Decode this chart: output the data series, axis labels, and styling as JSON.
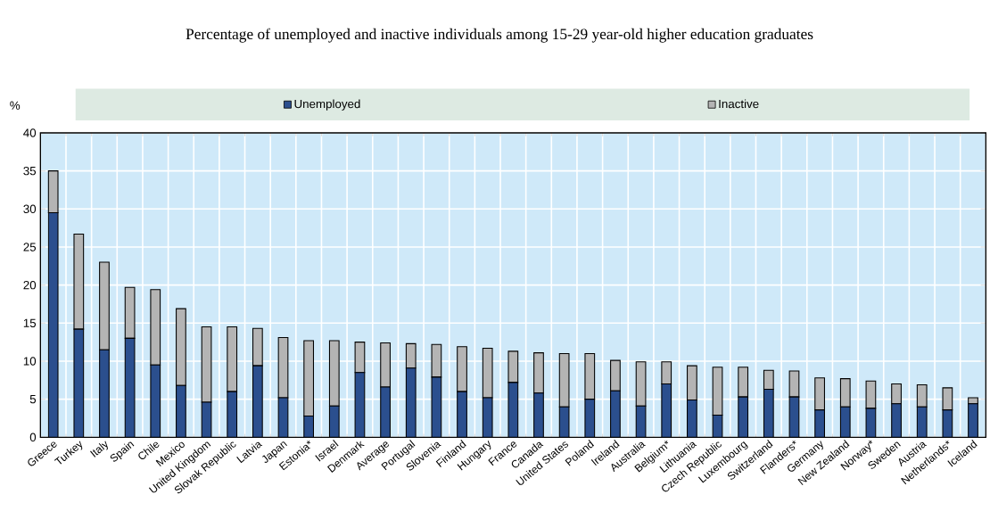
{
  "chart_data": {
    "type": "bar",
    "stacked": true,
    "title": "Percentage of unemployed and inactive individuals among 15-29 year-old higher education graduates",
    "ylabel": "%",
    "categories": [
      "Greece",
      "Turkey",
      "Italy",
      "Spain",
      "Chile",
      "Mexico",
      "United Kingdom",
      "Slovak Republic",
      "Latvia",
      "Japan",
      "Estonia*",
      "Israel",
      "Denmark",
      "Average",
      "Portugal",
      "Slovenia",
      "Finland",
      "Hungary",
      "France",
      "Canada",
      "United States",
      "Poland",
      "Ireland",
      "Australia",
      "Belgium*",
      "Lithuania",
      "Czech Republic",
      "Luxembourg",
      "Switzerland",
      "Flanders*",
      "Germany",
      "New Zealand",
      "Norway*",
      "Sweden",
      "Austria",
      "Netherlands*",
      "Iceland"
    ],
    "series": [
      {
        "name": "Unemployed",
        "color": "#2b4f8e",
        "values": [
          29.5,
          14.2,
          11.5,
          13.0,
          9.5,
          6.8,
          4.6,
          6.0,
          9.4,
          5.2,
          2.8,
          4.1,
          8.5,
          6.6,
          9.1,
          7.9,
          6.0,
          5.2,
          7.2,
          5.8,
          4.0,
          5.0,
          6.1,
          4.1,
          7.0,
          4.9,
          2.9,
          5.3,
          6.3,
          5.3,
          3.6,
          4.0,
          3.8,
          4.4,
          4.0,
          3.6,
          4.4
        ]
      },
      {
        "name": "Inactive",
        "color": "#b4b4b4",
        "values": [
          5.5,
          12.5,
          11.5,
          6.7,
          9.9,
          10.1,
          9.9,
          8.5,
          4.9,
          7.9,
          9.9,
          8.6,
          4.0,
          5.8,
          3.2,
          4.3,
          5.9,
          6.5,
          4.1,
          5.3,
          7.0,
          6.0,
          4.0,
          5.8,
          2.9,
          4.5,
          6.3,
          3.9,
          2.5,
          3.4,
          4.2,
          3.7,
          3.6,
          2.6,
          2.9,
          2.9,
          0.8
        ]
      }
    ],
    "ylim": [
      0,
      40
    ],
    "yticks": [
      0,
      5,
      10,
      15,
      20,
      25,
      30,
      35,
      40
    ],
    "grid": true,
    "legend": "top"
  }
}
